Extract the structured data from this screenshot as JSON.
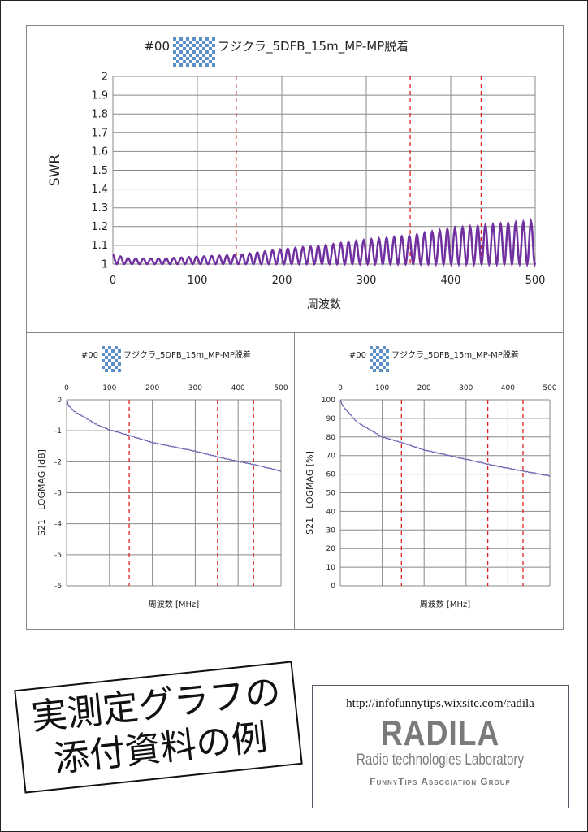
{
  "chart_data": [
    {
      "type": "line",
      "title_prefix": "#00",
      "title": "フジクラ_5DFB_15m_MP-MP脱着",
      "xlabel": "周波数",
      "ylabel": "SWR",
      "xlim": [
        0,
        500
      ],
      "ylim": [
        1,
        2
      ],
      "xticks": [
        "0",
        "100",
        "200",
        "300",
        "400",
        "500"
      ],
      "yticks": [
        "1",
        "1.1",
        "1.2",
        "1.3",
        "1.4",
        "1.5",
        "1.6",
        "1.7",
        "1.8",
        "1.9",
        "2"
      ],
      "markers_mhz": [
        146,
        352,
        436
      ],
      "ripple_period_mhz": 9,
      "series": [
        {
          "name": "SWR",
          "color": "#7030a0",
          "envelope_x": [
            0,
            20,
            60,
            100,
            150,
            200,
            250,
            300,
            350,
            400,
            450,
            500
          ],
          "envelope_max": [
            1.05,
            1.03,
            1.03,
            1.04,
            1.05,
            1.08,
            1.1,
            1.13,
            1.15,
            1.19,
            1.21,
            1.23
          ],
          "min": 1.0
        }
      ]
    },
    {
      "type": "line",
      "title_prefix": "#00",
      "title": "フジクラ_5DFB_15m_MP-MP脱着",
      "xlabel": "周波数 [MHz]",
      "ylabel": "S21　LOGMAG [dB]",
      "xlim": [
        0,
        500
      ],
      "ylim": [
        -6,
        0
      ],
      "xticks": [
        "0",
        "100",
        "200",
        "300",
        "400",
        "500"
      ],
      "yticks": [
        "-6",
        "-5",
        "-4",
        "-3",
        "-2",
        "-1",
        "0"
      ],
      "markers_mhz": [
        146,
        352,
        436
      ],
      "series": [
        {
          "name": "S21 dB",
          "color": "#7060b0",
          "x": [
            0,
            5,
            20,
            40,
            70,
            100,
            146,
            200,
            250,
            300,
            370,
            440,
            500
          ],
          "y": [
            0,
            -0.2,
            -0.4,
            -0.55,
            -0.8,
            -0.97,
            -1.15,
            -1.38,
            -1.52,
            -1.66,
            -1.9,
            -2.1,
            -2.3
          ]
        }
      ]
    },
    {
      "type": "line",
      "title_prefix": "#00",
      "title": "フジクラ_5DFB_15m_MP-MP脱着",
      "xlabel": "周波数 [MHz]",
      "ylabel": "S21　LOGMAG [%]",
      "xlim": [
        0,
        500
      ],
      "ylim": [
        0,
        100
      ],
      "xticks": [
        "0",
        "100",
        "200",
        "300",
        "400",
        "500"
      ],
      "yticks": [
        "0",
        "10",
        "20",
        "30",
        "40",
        "50",
        "60",
        "70",
        "80",
        "90",
        "100"
      ],
      "markers_mhz": [
        146,
        352,
        436
      ],
      "series": [
        {
          "name": "S21 %",
          "color": "#7060b0",
          "x": [
            0,
            5,
            20,
            40,
            70,
            100,
            146,
            200,
            250,
            300,
            370,
            440,
            500
          ],
          "y": [
            100,
            97,
            93,
            88,
            84,
            80,
            77,
            73,
            70.5,
            68,
            64.5,
            61.5,
            59
          ]
        }
      ]
    }
  ],
  "banner": "実測定グラフの添付資料の例",
  "logo": {
    "url": "http://infofunnytips.wixsite.com/radila",
    "name": "RADILA",
    "subtitle": "Radio technologies Laboratory",
    "group": "FunnyTips Association Group"
  }
}
